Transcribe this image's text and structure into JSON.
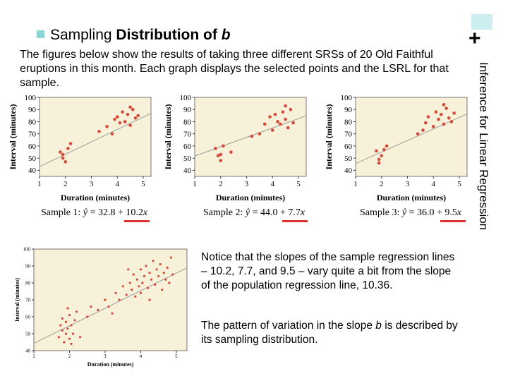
{
  "slide": {
    "title_label": "Sampling",
    "title_rest": " Distribution of ",
    "title_var": "b",
    "intro": "The figures below show the results of taking three different SRSs of 20 Old Faithful eruptions in this month. Each graph displays the selected points and the LSRL for that sample.",
    "side_title": "Inference for Linear Regression",
    "plus": "+",
    "note1": "Notice that the slopes of the sample regression lines – 10.2, 7.7, and 9.5 – vary quite a bit from the slope of the population regression line, 10.36.",
    "note2_a": "The pattern of variation in the slope ",
    "note2_var": "b",
    "note2_b": " is described by its sampling distribution."
  },
  "equations": [
    {
      "prefix": "Sample 1: ",
      "yhat": "ŷ",
      "rest": " = 32.8 + 10.2",
      "x": "x"
    },
    {
      "prefix": "Sample 2: ",
      "yhat": "ŷ",
      "rest": " = 44.0 + 7.7",
      "x": "x"
    },
    {
      "prefix": "Sample 3: ",
      "yhat": "ŷ",
      "rest": " = 36.0 + 9.5",
      "x": "x"
    }
  ],
  "colors": {
    "panel": "#f8f1d9",
    "point": "#d44a3b",
    "selected": "#56b8d6",
    "line": "#9a9a9a",
    "accent": "#e0302f"
  },
  "chart_data": [
    {
      "type": "scatter",
      "title": "",
      "xlabel": "Duration (minutes)",
      "ylabel": "Interval (minutes)",
      "xlim": [
        1,
        5.3
      ],
      "ylim": [
        35,
        100
      ],
      "xticks": [
        "1",
        "2",
        "3",
        "4",
        "5"
      ],
      "yticks": [
        "40",
        "50",
        "60",
        "70",
        "80",
        "90",
        "100"
      ],
      "line": {
        "intercept": 32.8,
        "slope": 10.2
      },
      "series": [
        {
          "values": [
            [
              1.8,
              55
            ],
            [
              1.9,
              50
            ],
            [
              2.0,
              47
            ],
            [
              2.1,
              58
            ],
            [
              3.3,
              72
            ],
            [
              3.6,
              76
            ],
            [
              3.9,
              82
            ],
            [
              4.0,
              84
            ],
            [
              4.1,
              79
            ],
            [
              4.2,
              88
            ],
            [
              4.3,
              80
            ],
            [
              4.4,
              86
            ],
            [
              4.5,
              77
            ],
            [
              4.6,
              90
            ],
            [
              4.7,
              83
            ],
            [
              4.8,
              85
            ],
            [
              1.9,
              53
            ],
            [
              2.2,
              62
            ],
            [
              3.8,
              70
            ],
            [
              4.5,
              92
            ]
          ]
        }
      ]
    },
    {
      "type": "scatter",
      "title": "",
      "xlabel": "Duration (minutes)",
      "ylabel": "Interval (minutes)",
      "xlim": [
        1,
        5.3
      ],
      "ylim": [
        35,
        100
      ],
      "xticks": [
        "1",
        "2",
        "3",
        "4",
        "5"
      ],
      "yticks": [
        "40",
        "50",
        "60",
        "70",
        "80",
        "90",
        "100"
      ],
      "line": {
        "intercept": 44.0,
        "slope": 7.7
      },
      "series": [
        {
          "values": [
            [
              1.8,
              58
            ],
            [
              1.9,
              52
            ],
            [
              2.0,
              48
            ],
            [
              2.1,
              60
            ],
            [
              2.4,
              55
            ],
            [
              3.5,
              70
            ],
            [
              3.7,
              78
            ],
            [
              3.9,
              84
            ],
            [
              4.0,
              73
            ],
            [
              4.1,
              86
            ],
            [
              4.2,
              80
            ],
            [
              4.3,
              78
            ],
            [
              4.4,
              88
            ],
            [
              4.5,
              82
            ],
            [
              4.6,
              75
            ],
            [
              4.7,
              90
            ],
            [
              4.8,
              79
            ],
            [
              2.0,
              53
            ],
            [
              3.2,
              68
            ],
            [
              4.5,
              93
            ]
          ]
        }
      ]
    },
    {
      "type": "scatter",
      "title": "",
      "xlabel": "Duration (minutes)",
      "ylabel": "Interval (minutes)",
      "xlim": [
        1,
        5.3
      ],
      "ylim": [
        35,
        100
      ],
      "xticks": [
        "1",
        "2",
        "3",
        "4",
        "5"
      ],
      "yticks": [
        "40",
        "50",
        "60",
        "70",
        "80",
        "90",
        "100"
      ],
      "line": {
        "intercept": 36.0,
        "slope": 9.5
      },
      "series": [
        {
          "values": [
            [
              1.8,
              56
            ],
            [
              1.9,
              49
            ],
            [
              2.0,
              52
            ],
            [
              2.2,
              60
            ],
            [
              3.4,
              70
            ],
            [
              3.7,
              79
            ],
            [
              3.8,
              84
            ],
            [
              4.0,
              76
            ],
            [
              4.1,
              88
            ],
            [
              4.2,
              82
            ],
            [
              4.3,
              86
            ],
            [
              4.4,
              78
            ],
            [
              4.5,
              91
            ],
            [
              4.6,
              83
            ],
            [
              4.7,
              80
            ],
            [
              4.8,
              87
            ],
            [
              1.9,
              46
            ],
            [
              2.1,
              57
            ],
            [
              3.6,
              73
            ],
            [
              4.4,
              94
            ]
          ]
        }
      ]
    },
    {
      "type": "scatter",
      "title": "",
      "xlabel": "Duration (minutes)",
      "ylabel": "Interval (minutes)",
      "xlim": [
        1,
        5.3
      ],
      "ylim": [
        40,
        100
      ],
      "xticks": [
        "1",
        "2",
        "3",
        "4",
        "5"
      ],
      "yticks": [
        "40",
        "50",
        "60",
        "70",
        "80",
        "90",
        "100"
      ],
      "line": {
        "intercept": 33.97,
        "slope": 10.36
      },
      "series": [
        {
          "values": [
            [
              1.7,
              48
            ],
            [
              1.75,
              55
            ],
            [
              1.8,
              52
            ],
            [
              1.8,
              59
            ],
            [
              1.85,
              45
            ],
            [
              1.9,
              57
            ],
            [
              1.9,
              50
            ],
            [
              1.95,
              53
            ],
            [
              2.0,
              47
            ],
            [
              2.0,
              61
            ],
            [
              2.05,
              55
            ],
            [
              2.1,
              50
            ],
            [
              2.15,
              58
            ],
            [
              2.2,
              63
            ],
            [
              2.3,
              48
            ],
            [
              2.5,
              60
            ],
            [
              2.6,
              66
            ],
            [
              2.8,
              64
            ],
            [
              3.0,
              70
            ],
            [
              3.1,
              66
            ],
            [
              3.3,
              74
            ],
            [
              3.4,
              70
            ],
            [
              3.5,
              78
            ],
            [
              3.6,
              73
            ],
            [
              3.7,
              80
            ],
            [
              3.75,
              76
            ],
            [
              3.8,
              85
            ],
            [
              3.85,
              72
            ],
            [
              3.9,
              82
            ],
            [
              3.95,
              78
            ],
            [
              4.0,
              88
            ],
            [
              4.0,
              74
            ],
            [
              4.05,
              80
            ],
            [
              4.1,
              84
            ],
            [
              4.15,
              90
            ],
            [
              4.2,
              77
            ],
            [
              4.25,
              86
            ],
            [
              4.3,
              82
            ],
            [
              4.35,
              93
            ],
            [
              4.4,
              79
            ],
            [
              4.45,
              88
            ],
            [
              4.5,
              84
            ],
            [
              4.55,
              91
            ],
            [
              4.6,
              76
            ],
            [
              4.65,
              86
            ],
            [
              4.7,
              82
            ],
            [
              4.75,
              89
            ],
            [
              4.8,
              80
            ],
            [
              4.85,
              95
            ],
            [
              4.9,
              85
            ],
            [
              1.95,
              65
            ],
            [
              2.05,
              44
            ],
            [
              3.2,
              62
            ],
            [
              3.65,
              88
            ],
            [
              4.25,
              70
            ]
          ]
        }
      ]
    }
  ]
}
